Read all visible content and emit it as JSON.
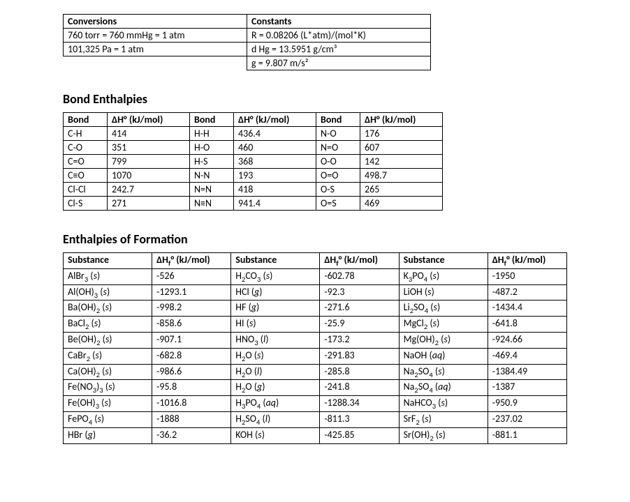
{
  "conversions": {
    "header": "Conversions",
    "rows": [
      "760 torr = 760 mmHg = 1 atm",
      "101,325 Pa = 1 atm"
    ]
  },
  "constants": {
    "header": "Constants",
    "rows": [
      "R = 0.08206 (L*atm)/(mol*K)",
      "d Hg = 13.5951 g/cm³",
      "g = 9.807 m/s²"
    ]
  },
  "bond_enthalpies": {
    "title": "Bond Enthalpies",
    "col_headers": [
      "Bond",
      "ΔH° (kJ/mol)",
      "Bond",
      "ΔH° (kJ/mol)",
      "Bond",
      "ΔH° (kJ/mol)"
    ],
    "rows": [
      [
        "C-H",
        "414",
        "H-H",
        "436.4",
        "N-O",
        "176"
      ],
      [
        "C-O",
        "351",
        "H-O",
        "460",
        "N=O",
        "607"
      ],
      [
        "C=O",
        "799",
        "H-S",
        "368",
        "O-O",
        "142"
      ],
      [
        "C≡O",
        "1070",
        "N-N",
        "193",
        "O=O",
        "498.7"
      ],
      [
        "Cl-Cl",
        "242.7",
        "N=N",
        "418",
        "O-S",
        "265"
      ],
      [
        "Cl-S",
        "271",
        "N≡N",
        "941.4",
        "O=S",
        "469"
      ]
    ]
  },
  "enthalpies_formation": {
    "title": "Enthalpies of Formation",
    "col_headers": [
      "Substance",
      "ΔHf° (kJ/mol)",
      "Substance",
      "ΔHf° (kJ/mol)",
      "Substance",
      "ΔHf° (kJ/mol)"
    ],
    "rows": [
      [
        {
          "f": "AlBr₃",
          "p": "s"
        },
        "-526",
        {
          "f": "H₂CO₃",
          "p": "s"
        },
        "-602.78",
        {
          "f": "K₃PO₄",
          "p": "s"
        },
        "-1950"
      ],
      [
        {
          "f": "Al(OH)₃",
          "p": "s"
        },
        "-1293.1",
        {
          "f": "HCl",
          "p": "g"
        },
        "-92.3",
        {
          "f": "LiOH",
          "p": "s"
        },
        "-487.2"
      ],
      [
        {
          "f": "Ba(OH)₂",
          "p": "s"
        },
        "-998.2",
        {
          "f": "HF",
          "p": "g"
        },
        "-271.6",
        {
          "f": "Li₂SO₄",
          "p": "s"
        },
        "-1434.4"
      ],
      [
        {
          "f": "BaCl₂",
          "p": "s"
        },
        "-858.6",
        {
          "f": "HI",
          "p": "s"
        },
        "-25.9",
        {
          "f": "MgCl₂",
          "p": "s"
        },
        "-641.8"
      ],
      [
        {
          "f": "Be(OH)₂",
          "p": "s"
        },
        "-907.1",
        {
          "f": "HNO₃",
          "p": "l"
        },
        "-173.2",
        {
          "f": "Mg(OH)₂",
          "p": "s"
        },
        "-924.66"
      ],
      [
        {
          "f": "CaBr₂",
          "p": "s"
        },
        "-682.8",
        {
          "f": "H₂O",
          "p": "s"
        },
        "-291.83",
        {
          "f": "NaOH",
          "p": "aq"
        },
        "-469.4"
      ],
      [
        {
          "f": "Ca(OH)₂",
          "p": "s"
        },
        "-986.6",
        {
          "f": "H₂O",
          "p": "l"
        },
        "-285.8",
        {
          "f": "Na₂SO₄",
          "p": "s"
        },
        "-1384.49"
      ],
      [
        {
          "f": "Fe(NO₃)₃",
          "p": "s"
        },
        "-95.8",
        {
          "f": "H₂O",
          "p": "g"
        },
        "-241.8",
        {
          "f": "Na₂SO₄",
          "p": "aq"
        },
        "-1387"
      ],
      [
        {
          "f": "Fe(OH)₃",
          "p": "s"
        },
        "-1016.8",
        {
          "f": "H₃PO₄",
          "p": "aq"
        },
        "-1288.34",
        {
          "f": "NaHCO₃",
          "p": "s"
        },
        "-950.9"
      ],
      [
        {
          "f": "FePO₄",
          "p": "s"
        },
        "-1888",
        {
          "f": "H₂SO₄",
          "p": "l"
        },
        "-811.3",
        {
          "f": "SrF₂",
          "p": "s"
        },
        "-237.02"
      ],
      [
        {
          "f": "HBr",
          "p": "g"
        },
        "-36.2",
        {
          "f": "KOH",
          "p": "s"
        },
        "-425.85",
        {
          "f": "Sr(OH)₂",
          "p": "s"
        },
        "-881.1"
      ]
    ]
  }
}
